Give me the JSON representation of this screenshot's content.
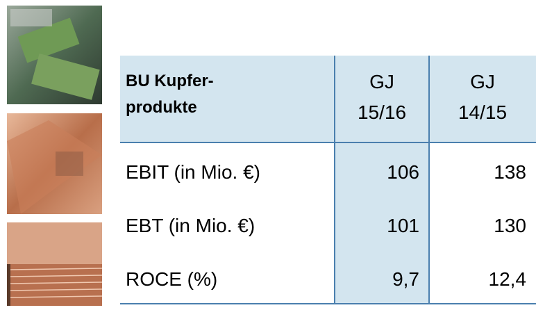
{
  "table": {
    "header": {
      "title_lines": [
        "BU Kupfer-",
        "produkte"
      ],
      "columns": [
        [
          "GJ",
          "15/16"
        ],
        [
          "GJ",
          "14/15"
        ]
      ]
    },
    "rows": [
      [
        "EBIT (in Mio. €)",
        "106",
        "138"
      ],
      [
        "EBT (in Mio. €)",
        "101",
        "130"
      ],
      [
        "ROCE (%)",
        "9,7",
        "12,4"
      ]
    ]
  }
}
